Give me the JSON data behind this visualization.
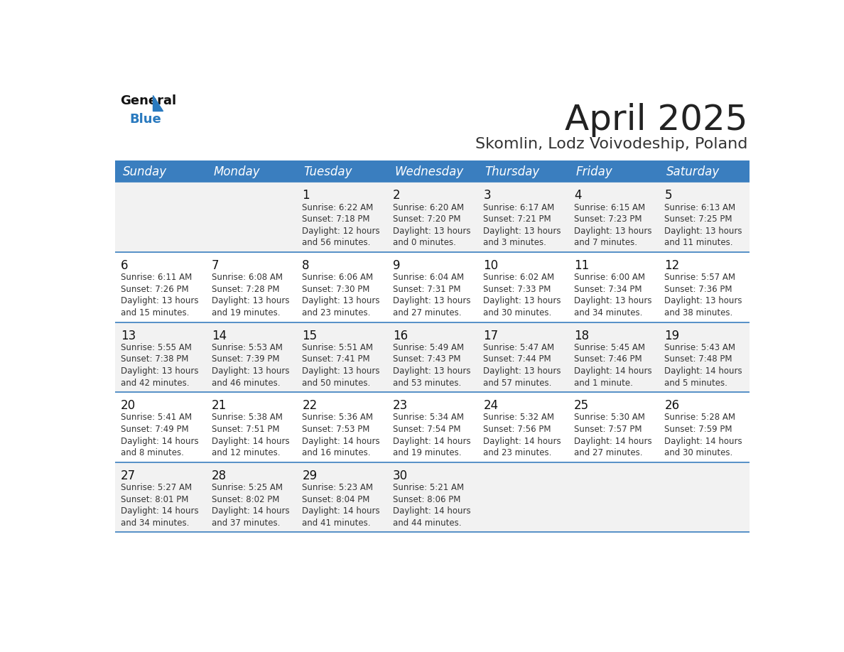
{
  "title": "April 2025",
  "subtitle": "Skomlin, Lodz Voivodeship, Poland",
  "header_bg_color": "#3a7ebf",
  "header_text_color": "#ffffff",
  "odd_row_bg": "#f2f2f2",
  "even_row_bg": "#ffffff",
  "separator_color": "#3a7ebf",
  "day_headers": [
    "Sunday",
    "Monday",
    "Tuesday",
    "Wednesday",
    "Thursday",
    "Friday",
    "Saturday"
  ],
  "title_color": "#222222",
  "subtitle_color": "#333333",
  "cell_text_color": "#333333",
  "day_num_color": "#111111",
  "calendar": [
    [
      {
        "day": null,
        "sunrise": null,
        "sunset": null,
        "daylight": null
      },
      {
        "day": null,
        "sunrise": null,
        "sunset": null,
        "daylight": null
      },
      {
        "day": 1,
        "sunrise": "6:22 AM",
        "sunset": "7:18 PM",
        "daylight": "12 hours and 56 minutes."
      },
      {
        "day": 2,
        "sunrise": "6:20 AM",
        "sunset": "7:20 PM",
        "daylight": "13 hours and 0 minutes."
      },
      {
        "day": 3,
        "sunrise": "6:17 AM",
        "sunset": "7:21 PM",
        "daylight": "13 hours and 3 minutes."
      },
      {
        "day": 4,
        "sunrise": "6:15 AM",
        "sunset": "7:23 PM",
        "daylight": "13 hours and 7 minutes."
      },
      {
        "day": 5,
        "sunrise": "6:13 AM",
        "sunset": "7:25 PM",
        "daylight": "13 hours and 11 minutes."
      }
    ],
    [
      {
        "day": 6,
        "sunrise": "6:11 AM",
        "sunset": "7:26 PM",
        "daylight": "13 hours and 15 minutes."
      },
      {
        "day": 7,
        "sunrise": "6:08 AM",
        "sunset": "7:28 PM",
        "daylight": "13 hours and 19 minutes."
      },
      {
        "day": 8,
        "sunrise": "6:06 AM",
        "sunset": "7:30 PM",
        "daylight": "13 hours and 23 minutes."
      },
      {
        "day": 9,
        "sunrise": "6:04 AM",
        "sunset": "7:31 PM",
        "daylight": "13 hours and 27 minutes."
      },
      {
        "day": 10,
        "sunrise": "6:02 AM",
        "sunset": "7:33 PM",
        "daylight": "13 hours and 30 minutes."
      },
      {
        "day": 11,
        "sunrise": "6:00 AM",
        "sunset": "7:34 PM",
        "daylight": "13 hours and 34 minutes."
      },
      {
        "day": 12,
        "sunrise": "5:57 AM",
        "sunset": "7:36 PM",
        "daylight": "13 hours and 38 minutes."
      }
    ],
    [
      {
        "day": 13,
        "sunrise": "5:55 AM",
        "sunset": "7:38 PM",
        "daylight": "13 hours and 42 minutes."
      },
      {
        "day": 14,
        "sunrise": "5:53 AM",
        "sunset": "7:39 PM",
        "daylight": "13 hours and 46 minutes."
      },
      {
        "day": 15,
        "sunrise": "5:51 AM",
        "sunset": "7:41 PM",
        "daylight": "13 hours and 50 minutes."
      },
      {
        "day": 16,
        "sunrise": "5:49 AM",
        "sunset": "7:43 PM",
        "daylight": "13 hours and 53 minutes."
      },
      {
        "day": 17,
        "sunrise": "5:47 AM",
        "sunset": "7:44 PM",
        "daylight": "13 hours and 57 minutes."
      },
      {
        "day": 18,
        "sunrise": "5:45 AM",
        "sunset": "7:46 PM",
        "daylight": "14 hours and 1 minute."
      },
      {
        "day": 19,
        "sunrise": "5:43 AM",
        "sunset": "7:48 PM",
        "daylight": "14 hours and 5 minutes."
      }
    ],
    [
      {
        "day": 20,
        "sunrise": "5:41 AM",
        "sunset": "7:49 PM",
        "daylight": "14 hours and 8 minutes."
      },
      {
        "day": 21,
        "sunrise": "5:38 AM",
        "sunset": "7:51 PM",
        "daylight": "14 hours and 12 minutes."
      },
      {
        "day": 22,
        "sunrise": "5:36 AM",
        "sunset": "7:53 PM",
        "daylight": "14 hours and 16 minutes."
      },
      {
        "day": 23,
        "sunrise": "5:34 AM",
        "sunset": "7:54 PM",
        "daylight": "14 hours and 19 minutes."
      },
      {
        "day": 24,
        "sunrise": "5:32 AM",
        "sunset": "7:56 PM",
        "daylight": "14 hours and 23 minutes."
      },
      {
        "day": 25,
        "sunrise": "5:30 AM",
        "sunset": "7:57 PM",
        "daylight": "14 hours and 27 minutes."
      },
      {
        "day": 26,
        "sunrise": "5:28 AM",
        "sunset": "7:59 PM",
        "daylight": "14 hours and 30 minutes."
      }
    ],
    [
      {
        "day": 27,
        "sunrise": "5:27 AM",
        "sunset": "8:01 PM",
        "daylight": "14 hours and 34 minutes."
      },
      {
        "day": 28,
        "sunrise": "5:25 AM",
        "sunset": "8:02 PM",
        "daylight": "14 hours and 37 minutes."
      },
      {
        "day": 29,
        "sunrise": "5:23 AM",
        "sunset": "8:04 PM",
        "daylight": "14 hours and 41 minutes."
      },
      {
        "day": 30,
        "sunrise": "5:21 AM",
        "sunset": "8:06 PM",
        "daylight": "14 hours and 44 minutes."
      },
      {
        "day": null,
        "sunrise": null,
        "sunset": null,
        "daylight": null
      },
      {
        "day": null,
        "sunrise": null,
        "sunset": null,
        "daylight": null
      },
      {
        "day": null,
        "sunrise": null,
        "sunset": null,
        "daylight": null
      }
    ]
  ]
}
